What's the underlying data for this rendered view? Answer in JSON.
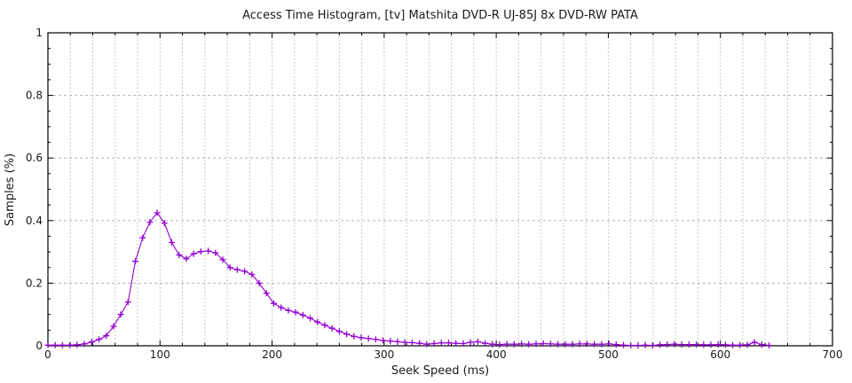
{
  "chart_data": {
    "type": "line",
    "style": "linespoints",
    "marker": "plus",
    "title": "Access Time Histogram, [tv] Matshita DVD-R UJ-85J 8x DVD-RW PATA",
    "xlabel": "Seek Speed (ms)",
    "ylabel": "Samples (%)",
    "x_range": [
      0,
      700
    ],
    "y_range": [
      0,
      1
    ],
    "x_ticks": [
      0,
      100,
      200,
      300,
      400,
      500,
      600,
      700
    ],
    "y_ticks": [
      "0",
      "0.2",
      "0.4",
      "0.6",
      "0.8",
      "1"
    ],
    "y_tick_values": [
      0,
      0.2,
      0.4,
      0.6,
      0.8,
      1
    ],
    "y_grid_ticks": [
      0.2,
      0.4,
      0.6,
      0.8
    ],
    "x_minor_step": 20,
    "y_minor_step": 0.05,
    "grid": true,
    "legend": "none",
    "line_color": "#9400d3",
    "grid_color": "#b4b4b4",
    "border_color": "#000000",
    "points": [
      [
        0,
        0.002
      ],
      [
        6.5,
        0.002
      ],
      [
        13,
        0.002
      ],
      [
        19.5,
        0.002
      ],
      [
        26,
        0.003
      ],
      [
        32.5,
        0.006
      ],
      [
        39,
        0.012
      ],
      [
        45.5,
        0.02
      ],
      [
        52,
        0.032
      ],
      [
        58.5,
        0.062
      ],
      [
        65,
        0.1
      ],
      [
        71.5,
        0.14
      ],
      [
        78,
        0.27
      ],
      [
        84.5,
        0.345
      ],
      [
        91,
        0.395
      ],
      [
        97.5,
        0.425
      ],
      [
        104,
        0.392
      ],
      [
        110.5,
        0.33
      ],
      [
        117,
        0.29
      ],
      [
        123.5,
        0.278
      ],
      [
        130,
        0.294
      ],
      [
        136.5,
        0.301
      ],
      [
        143,
        0.303
      ],
      [
        149.5,
        0.297
      ],
      [
        156,
        0.275
      ],
      [
        162.5,
        0.25
      ],
      [
        169,
        0.243
      ],
      [
        175.5,
        0.238
      ],
      [
        182,
        0.228
      ],
      [
        188.5,
        0.2
      ],
      [
        195,
        0.168
      ],
      [
        201.5,
        0.135
      ],
      [
        208,
        0.122
      ],
      [
        214.5,
        0.113
      ],
      [
        221,
        0.107
      ],
      [
        227.5,
        0.098
      ],
      [
        234,
        0.088
      ],
      [
        240.5,
        0.076
      ],
      [
        247,
        0.066
      ],
      [
        253.5,
        0.056
      ],
      [
        260,
        0.046
      ],
      [
        266.5,
        0.037
      ],
      [
        273,
        0.03
      ],
      [
        279.5,
        0.026
      ],
      [
        286,
        0.023
      ],
      [
        292.5,
        0.02
      ],
      [
        299,
        0.017
      ],
      [
        305.5,
        0.015
      ],
      [
        312,
        0.013
      ],
      [
        318.5,
        0.011
      ],
      [
        325,
        0.01
      ],
      [
        331.5,
        0.008
      ],
      [
        338,
        0.005
      ],
      [
        344.5,
        0.007
      ],
      [
        351,
        0.009
      ],
      [
        357.5,
        0.009
      ],
      [
        364,
        0.008
      ],
      [
        370.5,
        0.007
      ],
      [
        377,
        0.011
      ],
      [
        383.5,
        0.013
      ],
      [
        390,
        0.008
      ],
      [
        396.5,
        0.005
      ],
      [
        403,
        0.004
      ],
      [
        409.5,
        0.005
      ],
      [
        416,
        0.005
      ],
      [
        422.5,
        0.006
      ],
      [
        429,
        0.005
      ],
      [
        435.5,
        0.006
      ],
      [
        442,
        0.007
      ],
      [
        448.5,
        0.006
      ],
      [
        455,
        0.005
      ],
      [
        461.5,
        0.005
      ],
      [
        468,
        0.005
      ],
      [
        474.5,
        0.006
      ],
      [
        481,
        0.006
      ],
      [
        487.5,
        0.005
      ],
      [
        494,
        0.005
      ],
      [
        500.5,
        0.006
      ],
      [
        507,
        0.004
      ],
      [
        513.5,
        0.002
      ],
      [
        520,
        0.001
      ],
      [
        526.5,
        0.001
      ],
      [
        533,
        0.002
      ],
      [
        539.5,
        0.001
      ],
      [
        546,
        0.003
      ],
      [
        552.5,
        0.004
      ],
      [
        559,
        0.005
      ],
      [
        565.5,
        0.004
      ],
      [
        572,
        0.004
      ],
      [
        578.5,
        0.004
      ],
      [
        585,
        0.003
      ],
      [
        591.5,
        0.003
      ],
      [
        598,
        0.004
      ],
      [
        604.5,
        0.003
      ],
      [
        611,
        0.002
      ],
      [
        617.5,
        0.002
      ],
      [
        624,
        0.003
      ],
      [
        630.5,
        0.011
      ],
      [
        637,
        0.004
      ],
      [
        643.5,
        0.001
      ]
    ]
  }
}
